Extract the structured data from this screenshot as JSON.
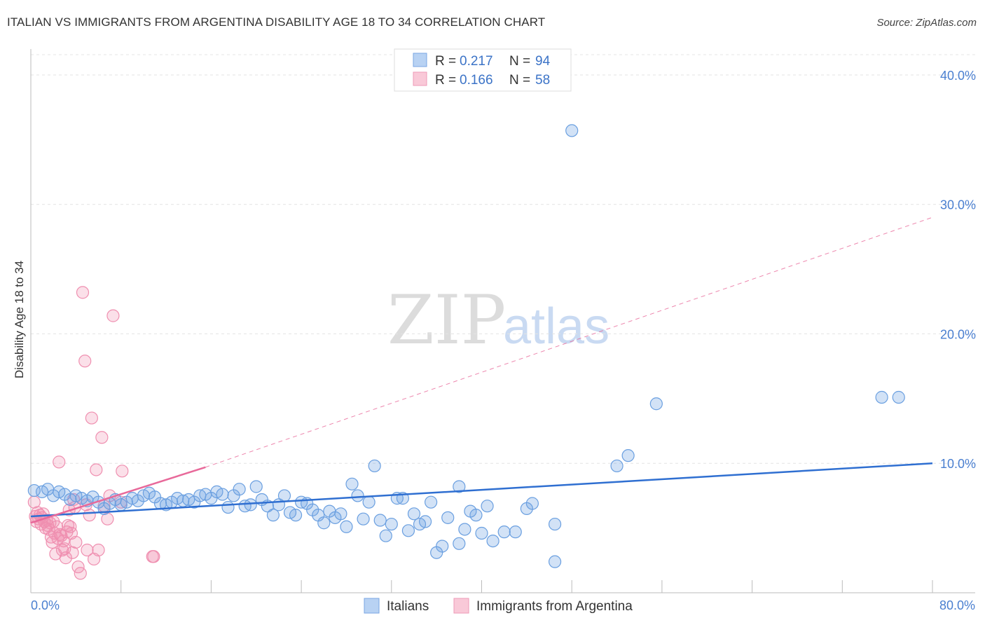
{
  "title": "ITALIAN VS IMMIGRANTS FROM ARGENTINA DISABILITY AGE 18 TO 34 CORRELATION CHART",
  "source": "Source: ZipAtlas.com",
  "watermark": {
    "zip": "ZIP",
    "atlas": "atlas"
  },
  "chart_data": {
    "type": "scatter",
    "title": "ITALIAN VS IMMIGRANTS FROM ARGENTINA DISABILITY AGE 18 TO 34 CORRELATION CHART",
    "xlabel": "",
    "ylabel": "Disability Age 18 to 34",
    "xlim": [
      0,
      80
    ],
    "ylim": [
      0,
      42
    ],
    "x_tick_labels": [
      "0.0%",
      "80.0%"
    ],
    "y_ticks": [
      10,
      20,
      30,
      40
    ],
    "y_tick_labels": [
      "10.0%",
      "20.0%",
      "30.0%",
      "40.0%"
    ],
    "legend_stats": [
      {
        "r_label": "R = ",
        "r_value": "0.217",
        "n_label": "N = ",
        "n_value": "94"
      },
      {
        "r_label": "R = ",
        "r_value": "0.166",
        "n_label": "N = ",
        "n_value": "58"
      }
    ],
    "colors": {
      "italians": "#6a9fe0",
      "argentina": "#ef8fb0",
      "italians_line": "#2f6fd1",
      "argentina_line": "#e8699a"
    },
    "series": [
      {
        "name": "Italians",
        "trend": {
          "x0": 0,
          "y0": 5.9,
          "x1": 80,
          "y1": 10.0
        },
        "points": [
          [
            0.3,
            7.9
          ],
          [
            1.0,
            7.8
          ],
          [
            1.5,
            8.0
          ],
          [
            2.0,
            7.5
          ],
          [
            2.5,
            7.8
          ],
          [
            3.0,
            7.6
          ],
          [
            3.5,
            7.2
          ],
          [
            4.0,
            7.5
          ],
          [
            4.5,
            7.3
          ],
          [
            5.0,
            7.1
          ],
          [
            5.5,
            7.4
          ],
          [
            6.0,
            7.0
          ],
          [
            6.5,
            6.5
          ],
          [
            7.0,
            6.9
          ],
          [
            7.5,
            7.2
          ],
          [
            8.0,
            6.8
          ],
          [
            8.5,
            7.0
          ],
          [
            9.0,
            7.3
          ],
          [
            9.5,
            7.1
          ],
          [
            10.0,
            7.5
          ],
          [
            10.5,
            7.7
          ],
          [
            11.0,
            7.4
          ],
          [
            11.5,
            6.9
          ],
          [
            12.0,
            6.8
          ],
          [
            12.5,
            7.0
          ],
          [
            13.0,
            7.3
          ],
          [
            13.5,
            7.1
          ],
          [
            14.0,
            7.2
          ],
          [
            14.5,
            7.0
          ],
          [
            15.0,
            7.5
          ],
          [
            15.5,
            7.6
          ],
          [
            16.0,
            7.3
          ],
          [
            16.5,
            7.8
          ],
          [
            17.0,
            7.6
          ],
          [
            17.5,
            6.6
          ],
          [
            18.0,
            7.5
          ],
          [
            18.5,
            8.0
          ],
          [
            19.0,
            6.7
          ],
          [
            19.5,
            6.8
          ],
          [
            20.0,
            8.2
          ],
          [
            20.5,
            7.2
          ],
          [
            21.0,
            6.7
          ],
          [
            21.5,
            6.0
          ],
          [
            22.0,
            6.8
          ],
          [
            22.5,
            7.5
          ],
          [
            23.0,
            6.2
          ],
          [
            23.5,
            6.0
          ],
          [
            24.0,
            7.0
          ],
          [
            24.5,
            6.9
          ],
          [
            25.0,
            6.4
          ],
          [
            25.5,
            6.0
          ],
          [
            26.0,
            5.4
          ],
          [
            26.5,
            6.3
          ],
          [
            27.0,
            5.8
          ],
          [
            27.5,
            6.1
          ],
          [
            28.0,
            5.1
          ],
          [
            28.5,
            8.4
          ],
          [
            29.0,
            7.5
          ],
          [
            29.5,
            5.7
          ],
          [
            30.0,
            7.0
          ],
          [
            30.5,
            9.8
          ],
          [
            31.0,
            5.6
          ],
          [
            31.5,
            4.4
          ],
          [
            32.0,
            5.3
          ],
          [
            32.5,
            7.3
          ],
          [
            33.0,
            7.3
          ],
          [
            33.5,
            4.8
          ],
          [
            34.0,
            6.1
          ],
          [
            34.5,
            5.3
          ],
          [
            35.0,
            5.5
          ],
          [
            35.5,
            7.0
          ],
          [
            36.0,
            3.1
          ],
          [
            36.5,
            3.6
          ],
          [
            37.0,
            5.8
          ],
          [
            38.0,
            8.2
          ],
          [
            38.0,
            3.8
          ],
          [
            38.5,
            4.9
          ],
          [
            39.0,
            6.3
          ],
          [
            39.5,
            6.0
          ],
          [
            40.0,
            4.6
          ],
          [
            40.5,
            6.7
          ],
          [
            41.0,
            4.0
          ],
          [
            42.0,
            4.7
          ],
          [
            43.0,
            4.7
          ],
          [
            44.0,
            6.5
          ],
          [
            44.5,
            6.9
          ],
          [
            46.5,
            5.3
          ],
          [
            46.5,
            2.4
          ],
          [
            48.0,
            35.7
          ],
          [
            52.0,
            9.8
          ],
          [
            53.0,
            10.6
          ],
          [
            55.5,
            14.6
          ],
          [
            75.5,
            15.1
          ],
          [
            77.0,
            15.1
          ]
        ]
      },
      {
        "name": "Immigrants from Argentina",
        "trend": {
          "x0": 0,
          "y0": 5.4,
          "x1": 15.5,
          "y1": 9.7
        },
        "trend_extension": {
          "x0": 15.5,
          "y0": 9.7,
          "x1": 80,
          "y1": 29.0
        },
        "points": [
          [
            0.3,
            7.0
          ],
          [
            0.4,
            5.9
          ],
          [
            0.5,
            5.5
          ],
          [
            0.6,
            6.2
          ],
          [
            0.7,
            5.7
          ],
          [
            0.8,
            6.0
          ],
          [
            0.9,
            5.3
          ],
          [
            1.0,
            5.8
          ],
          [
            1.1,
            6.1
          ],
          [
            1.2,
            5.5
          ],
          [
            1.3,
            5.0
          ],
          [
            1.4,
            5.6
          ],
          [
            1.5,
            5.2
          ],
          [
            1.6,
            4.9
          ],
          [
            1.7,
            5.4
          ],
          [
            1.8,
            4.3
          ],
          [
            1.9,
            3.9
          ],
          [
            2.0,
            5.5
          ],
          [
            2.1,
            4.6
          ],
          [
            2.2,
            3.0
          ],
          [
            2.3,
            5.1
          ],
          [
            2.4,
            4.2
          ],
          [
            2.5,
            10.1
          ],
          [
            2.6,
            4.5
          ],
          [
            2.7,
            4.4
          ],
          [
            2.8,
            3.3
          ],
          [
            2.9,
            4.0
          ],
          [
            3.0,
            3.4
          ],
          [
            3.1,
            2.7
          ],
          [
            3.2,
            4.7
          ],
          [
            3.3,
            5.2
          ],
          [
            3.4,
            6.4
          ],
          [
            3.5,
            5.1
          ],
          [
            3.6,
            4.6
          ],
          [
            3.7,
            3.1
          ],
          [
            3.8,
            7.2
          ],
          [
            3.9,
            6.6
          ],
          [
            4.0,
            3.9
          ],
          [
            4.2,
            2.0
          ],
          [
            4.4,
            1.5
          ],
          [
            4.6,
            23.2
          ],
          [
            4.8,
            17.9
          ],
          [
            4.9,
            6.8
          ],
          [
            5.0,
            3.3
          ],
          [
            5.2,
            6.0
          ],
          [
            5.4,
            13.5
          ],
          [
            5.6,
            2.6
          ],
          [
            5.8,
            9.5
          ],
          [
            6.0,
            3.3
          ],
          [
            6.3,
            12.0
          ],
          [
            6.5,
            6.7
          ],
          [
            6.8,
            5.7
          ],
          [
            7.0,
            7.5
          ],
          [
            7.3,
            21.4
          ],
          [
            8.0,
            7.0
          ],
          [
            8.1,
            9.4
          ],
          [
            10.8,
            2.8
          ],
          [
            10.9,
            2.8
          ]
        ]
      }
    ]
  }
}
